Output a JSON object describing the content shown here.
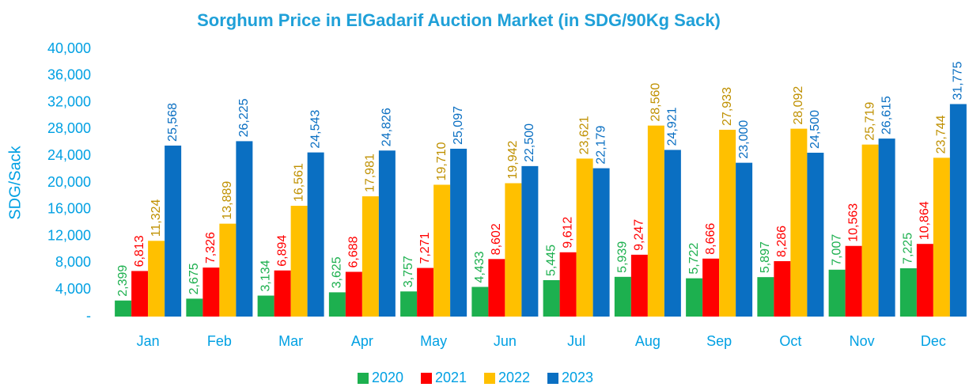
{
  "chart_data": {
    "type": "bar",
    "title": "Sorghum Price in ElGadarif Auction Market (in SDG/90Kg Sack)",
    "y_label": "SDG/Sack",
    "categories": [
      "Jan",
      "Feb",
      "Mar",
      "Apr",
      "May",
      "Jun",
      "Jul",
      "Aug",
      "Sep",
      "Oct",
      "Nov",
      "Dec"
    ],
    "series": [
      {
        "name": "2020",
        "color": "#1db04f",
        "label_color": "#1db04f",
        "values": [
          2399,
          2675,
          3134,
          3625,
          3757,
          4433,
          5445,
          5939,
          5722,
          5897,
          7007,
          7225
        ],
        "value_labels": [
          "2,399",
          "2,675",
          "3,134",
          "3,625",
          "3,757",
          "4,433",
          "5,445",
          "5,939",
          "5,722",
          "5,897",
          "7,007",
          "7,225"
        ]
      },
      {
        "name": "2021",
        "color": "#ff0000",
        "label_color": "#ff0000",
        "values": [
          6813,
          7326,
          6894,
          6688,
          7271,
          8602,
          9612,
          9247,
          8666,
          8286,
          10563,
          10864
        ],
        "value_labels": [
          "6,813",
          "7,326",
          "6,894",
          "6,688",
          "7,271",
          "8,602",
          "9,612",
          "9,247",
          "8,666",
          "8,286",
          "10,563",
          "10,864"
        ]
      },
      {
        "name": "2022",
        "color": "#ffc000",
        "label_color": "#bf9000",
        "values": [
          11324,
          13889,
          16561,
          17981,
          19710,
          19942,
          23621,
          28560,
          27933,
          28092,
          25719,
          23744
        ],
        "value_labels": [
          "11,324",
          "13,889",
          "16,561",
          "17,981",
          "19,710",
          "19,942",
          "23,621",
          "28,560",
          "27,933",
          "28,092",
          "25,719",
          "23,744"
        ]
      },
      {
        "name": "2023",
        "color": "#0a6fc2",
        "label_color": "#0a6fc2",
        "values": [
          25568,
          26225,
          24543,
          24826,
          25097,
          22500,
          22179,
          24921,
          23000,
          24500,
          26615,
          31775
        ],
        "value_labels": [
          "25,568",
          "26,225",
          "24,543",
          "24,826",
          "25,097",
          "22,500",
          "22,179",
          "24,921",
          "23,000",
          "24,500",
          "26,615",
          "31,775"
        ]
      }
    ],
    "ylim": [
      0,
      40000
    ],
    "yticks": [
      {
        "value": 0,
        "label": "-"
      },
      {
        "value": 4000,
        "label": "4,000"
      },
      {
        "value": 8000,
        "label": "8,000"
      },
      {
        "value": 12000,
        "label": "12,000"
      },
      {
        "value": 16000,
        "label": "16,000"
      },
      {
        "value": 20000,
        "label": "20,000"
      },
      {
        "value": 24000,
        "label": "24,000"
      },
      {
        "value": 28000,
        "label": "28,000"
      },
      {
        "value": 32000,
        "label": "32,000"
      },
      {
        "value": 36000,
        "label": "36,000"
      },
      {
        "value": 40000,
        "label": "40,000"
      }
    ],
    "legend": "bottom"
  }
}
